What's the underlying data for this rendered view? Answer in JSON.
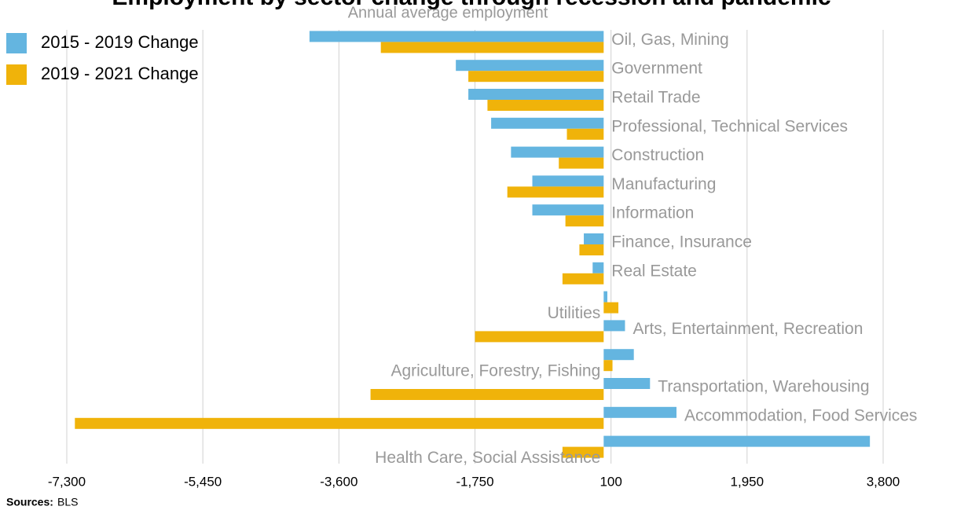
{
  "chart_data": {
    "type": "hbar",
    "title": "Employment by sector change through recession and pandemic",
    "subtitle": "Annual average employment",
    "categories": [
      "Oil, Gas, Mining",
      "Government",
      "Retail Trade",
      "Professional, Technical Services",
      "Construction",
      "Manufacturing",
      "Information",
      "Finance, Insurance",
      "Real Estate",
      "Utilities",
      "Arts, Entertainment, Recreation",
      "Agriculture, Forestry, Fishing",
      "Transportation, Warehousing",
      "Accommodation, Food Services",
      "Health Care, Social Assistance"
    ],
    "series": [
      {
        "name": "2015 - 2019 Change",
        "color": "#64b5e0",
        "values": [
          -4000,
          -2010,
          -1840,
          -1530,
          -1260,
          -970,
          -970,
          -270,
          -150,
          50,
          290,
          410,
          630,
          990,
          3620
        ]
      },
      {
        "name": "2019 - 2021 Change",
        "color": "#f0b30a",
        "values": [
          -3030,
          -1840,
          -1580,
          -500,
          -610,
          -1310,
          -520,
          -330,
          -560,
          200,
          -1750,
          120,
          -3170,
          -7190,
          -560
        ]
      }
    ],
    "xlim": [
      -7300,
      3800
    ],
    "xticks": [
      {
        "value": -7300,
        "label": "-7,300"
      },
      {
        "value": -5450,
        "label": "-5,450"
      },
      {
        "value": -3600,
        "label": "-3,600"
      },
      {
        "value": -1750,
        "label": "-1,750"
      },
      100,
      {
        "value": 1950,
        "label": "1,950"
      },
      {
        "value": 3800,
        "label": "3,800"
      }
    ],
    "grid": true,
    "legend": "top-left",
    "source_label": "Sources:",
    "source": "BLS"
  }
}
